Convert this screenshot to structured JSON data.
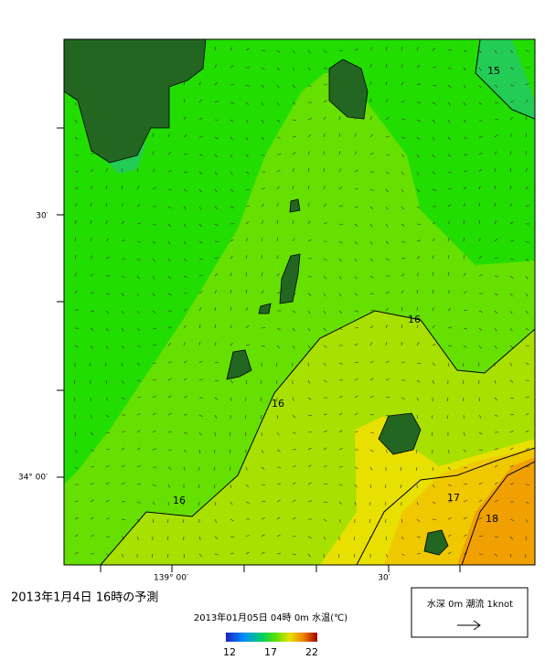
{
  "map": {
    "y_labels": [
      "30′",
      "34° 00′"
    ],
    "x_labels": [
      "139° 00′",
      "30′"
    ],
    "contour_labels": [
      "15",
      "16",
      "16",
      "16",
      "17",
      "18"
    ]
  },
  "caption": {
    "title": "2013年1月4日 16時の予測",
    "subtitle": "2013年01月05日 04時 0m 水温(℃)"
  },
  "colorbar": {
    "ticks": [
      12,
      17,
      22
    ]
  },
  "legend": {
    "text": "水深 0m 潮流 1knot"
  }
}
